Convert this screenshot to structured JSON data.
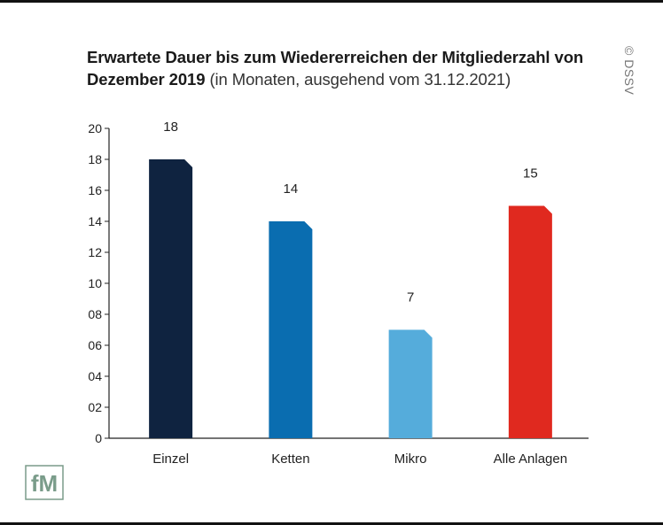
{
  "title": {
    "bold": "Erwartete Dauer bis zum Wiedererreichen der Mitgliederzahl von Dezember 2019",
    "light": "(in Monaten, ausgehend vom 31.12.2021)"
  },
  "copyright": "© DSSV",
  "logo": {
    "text": "fM"
  },
  "chart_data": {
    "type": "bar",
    "categories": [
      "Einzel",
      "Ketten",
      "Mikro",
      "Alle Anlagen"
    ],
    "values": [
      18,
      14,
      7,
      15
    ],
    "value_labels": [
      "18",
      "14",
      "7",
      "15"
    ],
    "colors": [
      "#0f2340",
      "#0a6db0",
      "#55acdb",
      "#e0291f"
    ],
    "ylim": [
      0,
      20
    ],
    "yticks": [
      0,
      2,
      4,
      6,
      8,
      10,
      12,
      14,
      16,
      18,
      20
    ],
    "ytick_labels": [
      "0",
      "02",
      "04",
      "06",
      "08",
      "10",
      "12",
      "14",
      "16",
      "18",
      "20"
    ],
    "grid": false,
    "legend": "none"
  }
}
